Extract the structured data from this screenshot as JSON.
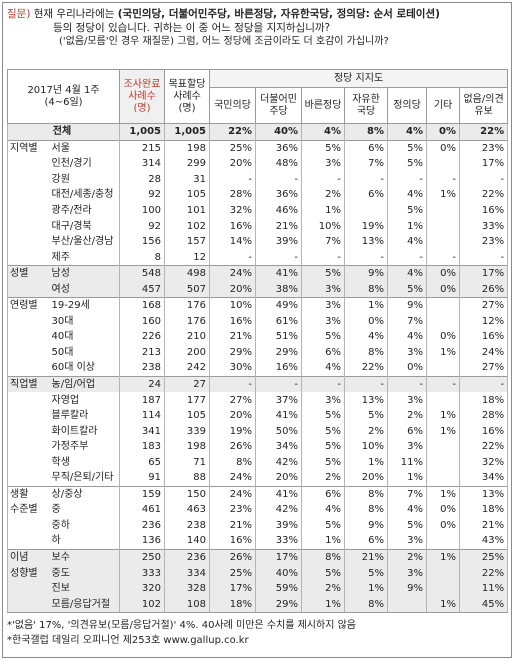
{
  "question": {
    "label": "질문)",
    "line1_pre": "현재 우리나라에는",
    "line1_bold": "(국민의당, 더불어민주당, 바른정당, 자유한국당, 정의당: 순서 로테이션)",
    "line2": "등의 정당이 있습니다. 귀하는 이 중 어느 정당을 지지하십니까?",
    "line3": "('없음/모름'인 경우 재질문) 그럼, 어느 정당에 조금이라도 더 호감이 가십니까?"
  },
  "header": {
    "period_label": "2017년 4월 1주",
    "period_sub": "(4~6일)",
    "sample_completed": "조사완료사례수(명)",
    "sample_weighted": "목표할당사례수(명)",
    "support_group": "정당 지지도",
    "parties": [
      "국민의당",
      "더불어민주당",
      "바른정당",
      "자유한국당",
      "정의당",
      "기타",
      "없음/의견유보"
    ]
  },
  "rows": [
    {
      "group": "",
      "sub": "전체",
      "n1": "1,005",
      "n2": "1,005",
      "v": [
        "22%",
        "40%",
        "4%",
        "8%",
        "4%",
        "0%",
        "22%"
      ]
    },
    {
      "group": "지역별",
      "sub": "서울",
      "n1": "215",
      "n2": "198",
      "v": [
        "25%",
        "36%",
        "5%",
        "6%",
        "5%",
        "0%",
        "23%"
      ]
    },
    {
      "group": "",
      "sub": "인천/경기",
      "n1": "314",
      "n2": "299",
      "v": [
        "20%",
        "48%",
        "3%",
        "7%",
        "5%",
        "",
        "17%"
      ]
    },
    {
      "group": "",
      "sub": "강원",
      "n1": "28",
      "n2": "31",
      "v": [
        "-",
        "-",
        "-",
        "-",
        "-",
        "-",
        "-"
      ]
    },
    {
      "group": "",
      "sub": "대전/세종/충청",
      "n1": "92",
      "n2": "105",
      "v": [
        "28%",
        "36%",
        "2%",
        "6%",
        "4%",
        "1%",
        "22%"
      ]
    },
    {
      "group": "",
      "sub": "광주/전라",
      "n1": "100",
      "n2": "101",
      "v": [
        "32%",
        "46%",
        "1%",
        "",
        "5%",
        "",
        "16%"
      ]
    },
    {
      "group": "",
      "sub": "대구/경북",
      "n1": "92",
      "n2": "102",
      "v": [
        "16%",
        "21%",
        "10%",
        "19%",
        "1%",
        "",
        "33%"
      ]
    },
    {
      "group": "",
      "sub": "부산/울산/경남",
      "n1": "156",
      "n2": "157",
      "v": [
        "14%",
        "39%",
        "7%",
        "13%",
        "4%",
        "",
        "23%"
      ]
    },
    {
      "group": "",
      "sub": "제주",
      "n1": "8",
      "n2": "12",
      "v": [
        "-",
        "-",
        "-",
        "-",
        "-",
        "-",
        "-"
      ]
    },
    {
      "group": "성별",
      "sub": "남성",
      "n1": "548",
      "n2": "498",
      "v": [
        "24%",
        "41%",
        "5%",
        "9%",
        "4%",
        "0%",
        "17%"
      ]
    },
    {
      "group": "",
      "sub": "여성",
      "n1": "457",
      "n2": "507",
      "v": [
        "20%",
        "38%",
        "3%",
        "8%",
        "5%",
        "0%",
        "26%"
      ]
    },
    {
      "group": "연령별",
      "sub": "19-29세",
      "n1": "168",
      "n2": "176",
      "v": [
        "10%",
        "49%",
        "3%",
        "1%",
        "9%",
        "",
        "27%"
      ]
    },
    {
      "group": "",
      "sub": "30대",
      "n1": "160",
      "n2": "176",
      "v": [
        "16%",
        "61%",
        "3%",
        "0%",
        "7%",
        "",
        "12%"
      ]
    },
    {
      "group": "",
      "sub": "40대",
      "n1": "226",
      "n2": "210",
      "v": [
        "21%",
        "51%",
        "5%",
        "4%",
        "4%",
        "0%",
        "16%"
      ]
    },
    {
      "group": "",
      "sub": "50대",
      "n1": "213",
      "n2": "200",
      "v": [
        "29%",
        "29%",
        "6%",
        "8%",
        "3%",
        "1%",
        "24%"
      ]
    },
    {
      "group": "",
      "sub": "60대 이상",
      "n1": "238",
      "n2": "242",
      "v": [
        "30%",
        "16%",
        "4%",
        "22%",
        "0%",
        "",
        "27%"
      ]
    },
    {
      "group": "직업별",
      "sub": "농/임/어업",
      "n1": "24",
      "n2": "27",
      "v": [
        "-",
        "-",
        "-",
        "-",
        "-",
        "-",
        "-"
      ]
    },
    {
      "group": "",
      "sub": "자영업",
      "n1": "187",
      "n2": "177",
      "v": [
        "27%",
        "37%",
        "3%",
        "13%",
        "3%",
        "",
        "18%"
      ]
    },
    {
      "group": "",
      "sub": "블루칼라",
      "n1": "114",
      "n2": "105",
      "v": [
        "20%",
        "41%",
        "5%",
        "5%",
        "2%",
        "1%",
        "28%"
      ]
    },
    {
      "group": "",
      "sub": "화이트칼라",
      "n1": "341",
      "n2": "339",
      "v": [
        "19%",
        "50%",
        "5%",
        "2%",
        "6%",
        "1%",
        "16%"
      ]
    },
    {
      "group": "",
      "sub": "가정주부",
      "n1": "183",
      "n2": "198",
      "v": [
        "26%",
        "34%",
        "5%",
        "10%",
        "3%",
        "",
        "22%"
      ]
    },
    {
      "group": "",
      "sub": "학생",
      "n1": "65",
      "n2": "71",
      "v": [
        "8%",
        "42%",
        "5%",
        "1%",
        "11%",
        "",
        "32%"
      ]
    },
    {
      "group": "",
      "sub": "무직/은퇴/기타",
      "n1": "91",
      "n2": "88",
      "v": [
        "24%",
        "20%",
        "2%",
        "20%",
        "1%",
        "",
        "34%"
      ]
    },
    {
      "group": "생활",
      "sub": "상/중상",
      "n1": "159",
      "n2": "150",
      "v": [
        "24%",
        "41%",
        "6%",
        "8%",
        "7%",
        "1%",
        "13%"
      ]
    },
    {
      "group": "수준별",
      "sub": "중",
      "n1": "461",
      "n2": "463",
      "v": [
        "23%",
        "42%",
        "4%",
        "8%",
        "4%",
        "0%",
        "18%"
      ]
    },
    {
      "group": "",
      "sub": "중하",
      "n1": "236",
      "n2": "238",
      "v": [
        "21%",
        "39%",
        "5%",
        "9%",
        "5%",
        "0%",
        "21%"
      ]
    },
    {
      "group": "",
      "sub": "하",
      "n1": "136",
      "n2": "140",
      "v": [
        "16%",
        "33%",
        "1%",
        "6%",
        "3%",
        "",
        "43%"
      ]
    },
    {
      "group": "이념",
      "sub": "보수",
      "n1": "250",
      "n2": "236",
      "v": [
        "26%",
        "17%",
        "8%",
        "21%",
        "2%",
        "1%",
        "25%"
      ]
    },
    {
      "group": "성향별",
      "sub": "중도",
      "n1": "333",
      "n2": "334",
      "v": [
        "25%",
        "40%",
        "5%",
        "5%",
        "3%",
        "",
        "22%"
      ]
    },
    {
      "group": "",
      "sub": "진보",
      "n1": "320",
      "n2": "328",
      "v": [
        "17%",
        "59%",
        "2%",
        "1%",
        "9%",
        "",
        "11%"
      ]
    },
    {
      "group": "",
      "sub": "모름/응답거절",
      "n1": "102",
      "n2": "108",
      "v": [
        "18%",
        "29%",
        "1%",
        "8%",
        "",
        "1%",
        "45%"
      ]
    }
  ],
  "notes": [
    "*'없음' 17%, '의견유보(모름/응답거절)' 4%. 40사례 미만은 수치를 제시하지 않음",
    "*한국갤럽 데일리 오피니언 제253호 www.gallup.co.kr"
  ]
}
